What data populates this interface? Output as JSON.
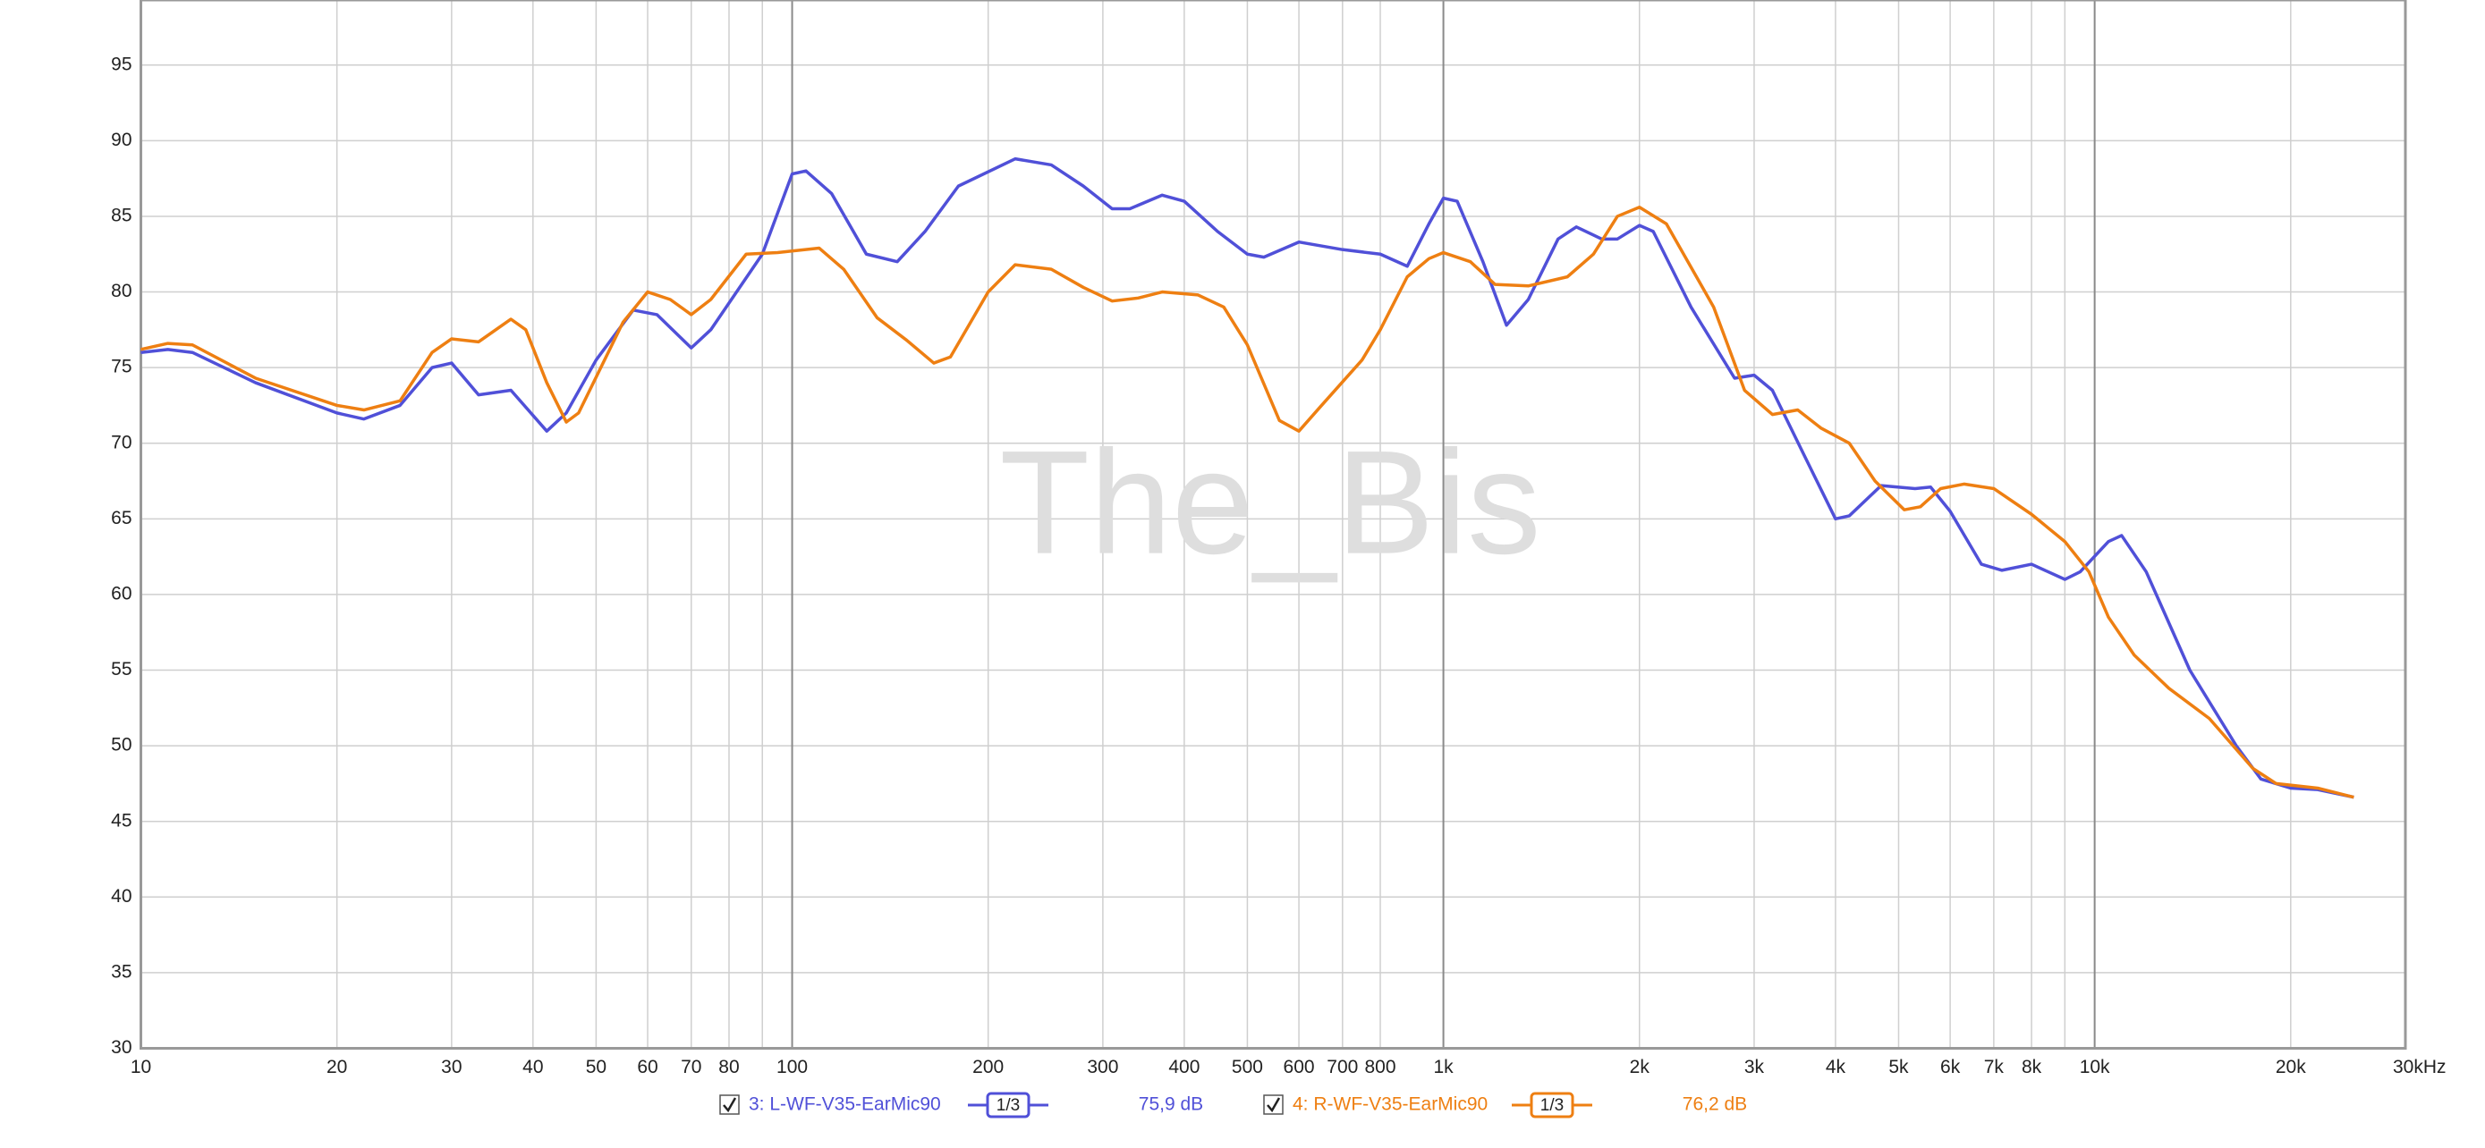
{
  "chart_data": {
    "type": "line",
    "watermark": "The_Bis",
    "xscale": "log",
    "grid": true,
    "xlim": [
      10,
      30000
    ],
    "ylim": [
      30,
      99.3
    ],
    "yticks": [
      30,
      35,
      40,
      45,
      50,
      55,
      60,
      65,
      70,
      75,
      80,
      85,
      90,
      95
    ],
    "xticks": [
      10,
      20,
      30,
      40,
      50,
      60,
      70,
      80,
      100,
      200,
      300,
      400,
      500,
      600,
      700,
      800,
      {
        "value": 1000,
        "label": "1k"
      },
      {
        "value": 2000,
        "label": "2k"
      },
      {
        "value": 3000,
        "label": "3k"
      },
      {
        "value": 4000,
        "label": "4k"
      },
      {
        "value": 5000,
        "label": "5k"
      },
      {
        "value": 6000,
        "label": "6k"
      },
      {
        "value": 7000,
        "label": "7k"
      },
      {
        "value": 8000,
        "label": "8k"
      },
      {
        "value": 10000,
        "label": "10k"
      },
      {
        "value": 20000,
        "label": "20k"
      },
      {
        "value": 30000,
        "label": "30kHz"
      }
    ],
    "xgrid": [
      90,
      9000
    ],
    "series": [
      {
        "name": "3: L-WF-V35-EarMic90",
        "color": "#5050d8",
        "smoothing": "1/3",
        "level": "75,9 dB",
        "x": [
          10,
          11,
          12,
          15,
          20,
          22,
          25,
          28,
          30,
          33,
          37,
          42,
          45,
          50,
          57,
          62,
          70,
          75,
          90,
          100,
          105,
          115,
          130,
          145,
          160,
          180,
          220,
          250,
          280,
          310,
          330,
          370,
          400,
          450,
          500,
          530,
          600,
          700,
          800,
          880,
          950,
          1000,
          1050,
          1150,
          1250,
          1350,
          1500,
          1600,
          1750,
          1850,
          2000,
          2100,
          2400,
          2800,
          3000,
          3200,
          3600,
          4000,
          4200,
          4700,
          5300,
          5600,
          6000,
          6700,
          7200,
          8000,
          9000,
          9500,
          10500,
          11000,
          12000,
          14000,
          16500,
          18000,
          20000,
          22000,
          25000
        ],
        "values": [
          76.0,
          76.2,
          76.0,
          74,
          72,
          71.6,
          72.5,
          75,
          75.3,
          73.2,
          73.5,
          70.8,
          72,
          75.5,
          78.8,
          78.5,
          76.3,
          77.5,
          82.5,
          87.8,
          88,
          86.5,
          82.5,
          82,
          84,
          87,
          88.8,
          88.4,
          87,
          85.5,
          85.5,
          86.4,
          86,
          84,
          82.5,
          82.3,
          83.3,
          82.8,
          82.5,
          81.7,
          84.5,
          86.2,
          86,
          82,
          77.8,
          79.5,
          83.5,
          84.3,
          83.5,
          83.5,
          84.4,
          84,
          79,
          74.3,
          74.5,
          73.5,
          69,
          65,
          65.2,
          67.2,
          67,
          67.1,
          65.5,
          62,
          61.6,
          62,
          61,
          61.5,
          63.5,
          63.9,
          61.5,
          55,
          50,
          47.8,
          47.2,
          47.1,
          46.6
        ]
      },
      {
        "name": "4: R-WF-V35-EarMic90",
        "color": "#ee7f12",
        "smoothing": "1/3",
        "level": "76,2 dB",
        "x": [
          10,
          11,
          12,
          15,
          20,
          22,
          25,
          28,
          30,
          33,
          37,
          39,
          42,
          45,
          47,
          55,
          60,
          65,
          70,
          75,
          85,
          95,
          110,
          120,
          135,
          150,
          165,
          175,
          200,
          220,
          250,
          280,
          310,
          340,
          370,
          420,
          460,
          500,
          560,
          600,
          650,
          750,
          800,
          880,
          950,
          1000,
          1100,
          1200,
          1350,
          1550,
          1700,
          1850,
          2000,
          2200,
          2600,
          2900,
          3200,
          3500,
          3800,
          4200,
          4600,
          5100,
          5400,
          5800,
          6300,
          7000,
          8000,
          9000,
          9800,
          10500,
          11500,
          13000,
          15000,
          17500,
          19000,
          22000,
          25000
        ],
        "values": [
          76.2,
          76.6,
          76.5,
          74.3,
          72.5,
          72.2,
          72.8,
          76,
          76.9,
          76.7,
          78.2,
          77.5,
          74,
          71.4,
          72,
          78,
          80,
          79.5,
          78.5,
          79.5,
          82.5,
          82.6,
          82.9,
          81.5,
          78.3,
          76.8,
          75.3,
          75.7,
          80,
          81.8,
          81.5,
          80.3,
          79.4,
          79.6,
          80,
          79.8,
          79,
          76.5,
          71.5,
          70.8,
          72.5,
          75.5,
          77.5,
          81,
          82.2,
          82.6,
          82,
          80.5,
          80.4,
          81,
          82.5,
          85,
          85.6,
          84.5,
          79,
          73.5,
          71.9,
          72.2,
          71,
          70,
          67.5,
          65.6,
          65.8,
          67,
          67.3,
          67,
          65.3,
          63.5,
          61.5,
          58.5,
          56,
          53.8,
          51.8,
          48.5,
          47.5,
          47.2,
          46.6
        ]
      }
    ]
  }
}
